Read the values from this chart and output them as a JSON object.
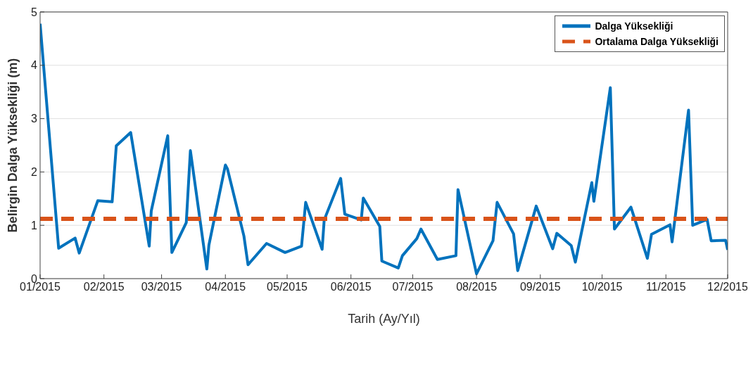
{
  "chart_data": {
    "type": "line",
    "xlabel": "Tarih (Ay/Yıl)",
    "ylabel": "Belirgin Dalga Yüksekliği (m)",
    "xlim": [
      "2015-01-01",
      "2015-12-01"
    ],
    "ylim": [
      0,
      5
    ],
    "yticks": [
      0,
      1,
      2,
      3,
      4,
      5
    ],
    "xticks": [
      {
        "value": "2015-01-01",
        "label": "01/2015"
      },
      {
        "value": "2015-02-01",
        "label": "02/2015"
      },
      {
        "value": "2015-03-01",
        "label": "03/2015"
      },
      {
        "value": "2015-04-01",
        "label": "04/2015"
      },
      {
        "value": "2015-05-01",
        "label": "05/2015"
      },
      {
        "value": "2015-06-01",
        "label": "06/2015"
      },
      {
        "value": "2015-07-01",
        "label": "07/2015"
      },
      {
        "value": "2015-08-01",
        "label": "08/2015"
      },
      {
        "value": "2015-09-01",
        "label": "09/2015"
      },
      {
        "value": "2015-10-01",
        "label": "10/2015"
      },
      {
        "value": "2015-11-01",
        "label": "11/2015"
      },
      {
        "value": "2015-12-01",
        "label": "12/2015"
      }
    ],
    "grid": "y",
    "legend": "top right",
    "marker": "none",
    "series": [
      {
        "name": "Dalga Yüksekliği",
        "color": "#0072bd",
        "line_style": "solid",
        "x": [
          "2015-01-01",
          "2015-01-10",
          "2015-01-18",
          "2015-01-20",
          "2015-01-29",
          "2015-02-05",
          "2015-02-07",
          "2015-02-14",
          "2015-02-23",
          "2015-02-24",
          "2015-03-04",
          "2015-03-06",
          "2015-03-13",
          "2015-03-15",
          "2015-03-23",
          "2015-03-24",
          "2015-04-01",
          "2015-04-02",
          "2015-04-10",
          "2015-04-12",
          "2015-04-21",
          "2015-04-30",
          "2015-05-08",
          "2015-05-10",
          "2015-05-18",
          "2015-05-19",
          "2015-05-27",
          "2015-05-29",
          "2015-06-06",
          "2015-06-07",
          "2015-06-15",
          "2015-06-16",
          "2015-06-24",
          "2015-06-26",
          "2015-07-03",
          "2015-07-05",
          "2015-07-13",
          "2015-07-22",
          "2015-07-23",
          "2015-08-01",
          "2015-08-09",
          "2015-08-11",
          "2015-08-19",
          "2015-08-21",
          "2015-08-30",
          "2015-09-07",
          "2015-09-09",
          "2015-09-16",
          "2015-09-18",
          "2015-09-26",
          "2015-09-27",
          "2015-10-05",
          "2015-10-07",
          "2015-10-15",
          "2015-10-23",
          "2015-10-25",
          "2015-11-03",
          "2015-11-04",
          "2015-11-12",
          "2015-11-14",
          "2015-11-21",
          "2015-11-23",
          "2015-11-30",
          "2015-12-01"
        ],
        "values": [
          4.78,
          0.57,
          0.76,
          0.48,
          1.46,
          1.44,
          2.49,
          2.74,
          0.61,
          1.27,
          2.68,
          0.49,
          1.05,
          2.4,
          0.18,
          0.63,
          2.13,
          2.06,
          0.8,
          0.26,
          0.66,
          0.49,
          0.61,
          1.43,
          0.55,
          1.1,
          1.88,
          1.21,
          1.1,
          1.51,
          0.98,
          0.33,
          0.2,
          0.43,
          0.75,
          0.93,
          0.36,
          0.43,
          1.67,
          0.09,
          0.71,
          1.43,
          0.84,
          0.15,
          1.36,
          0.56,
          0.85,
          0.62,
          0.31,
          1.8,
          1.45,
          3.58,
          0.93,
          1.34,
          0.38,
          0.83,
          1.01,
          0.69,
          3.16,
          1.0,
          1.11,
          0.71,
          0.72,
          0.54
        ]
      },
      {
        "name": "Ortalama Dalga Yüksekliği",
        "color": "#d95319",
        "line_style": "dashed",
        "x": [
          "2015-01-01",
          "2015-12-01"
        ],
        "values": [
          1.12,
          1.12
        ]
      }
    ]
  }
}
